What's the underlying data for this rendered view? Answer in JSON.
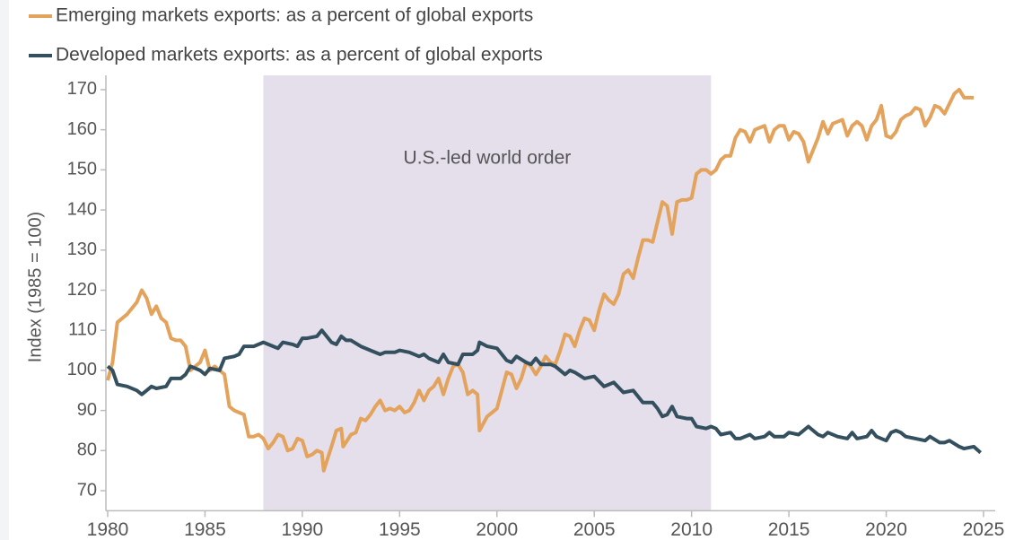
{
  "chart_data": {
    "type": "line",
    "ylabel": "Index (1985 = 100)",
    "xlim": [
      1980,
      2025.6
    ],
    "xticks": [
      1980,
      1985,
      1990,
      1995,
      2000,
      2005,
      2010,
      2015,
      2020,
      2025
    ],
    "ylim": [
      65,
      172
    ],
    "yticks": [
      70,
      80,
      90,
      100,
      110,
      120,
      130,
      140,
      150,
      160,
      170
    ],
    "grid": false,
    "legend": "top-left",
    "shaded_region": {
      "label": "U.S.-led world order",
      "x0": 1988,
      "x1": 2011,
      "color": "#e4dfea"
    },
    "series": [
      {
        "name": "Emerging markets exports: as a percent of global exports",
        "color": "#e3a35c",
        "x": [
          1980,
          1980.25,
          1980.5,
          1981,
          1981.5,
          1981.75,
          1982,
          1982.25,
          1982.5,
          1982.75,
          1983,
          1983.25,
          1983.5,
          1983.75,
          1984,
          1984.25,
          1984.5,
          1984.75,
          1985,
          1985.25,
          1985.5,
          1985.75,
          1986,
          1986.25,
          1986.5,
          1986.75,
          1987,
          1987.25,
          1987.5,
          1987.75,
          1988,
          1988.25,
          1988.5,
          1988.75,
          1989,
          1989.25,
          1989.5,
          1989.75,
          1990,
          1990.25,
          1990.5,
          1990.75,
          1991,
          1991.1,
          1991.5,
          1991.75,
          1992,
          1992.1,
          1992.5,
          1992.75,
          1993,
          1993.25,
          1993.5,
          1993.75,
          1994,
          1994.25,
          1994.5,
          1994.75,
          1995,
          1995.25,
          1995.5,
          1995.75,
          1996,
          1996.25,
          1996.5,
          1996.75,
          1997,
          1997.25,
          1997.5,
          1997.75,
          1998,
          1998.25,
          1998.5,
          1998.75,
          1999,
          1999.1,
          1999.5,
          1999.75,
          2000,
          2000.25,
          2000.5,
          2000.75,
          2001,
          2001.25,
          2001.5,
          2001.75,
          2002,
          2002.25,
          2002.5,
          2002.75,
          2003,
          2003.25,
          2003.5,
          2003.75,
          2004,
          2004.25,
          2004.5,
          2004.75,
          2005,
          2005.25,
          2005.5,
          2005.75,
          2006,
          2006.25,
          2006.5,
          2006.75,
          2007,
          2007.25,
          2007.5,
          2007.75,
          2008,
          2008.25,
          2008.5,
          2008.75,
          2009,
          2009.25,
          2009.5,
          2009.75,
          2010,
          2010.25,
          2010.5,
          2010.75,
          2011,
          2011.25,
          2011.5,
          2011.75,
          2012,
          2012.25,
          2012.5,
          2012.75,
          2013,
          2013.25,
          2013.5,
          2013.75,
          2014,
          2014.25,
          2014.5,
          2014.75,
          2015,
          2015.25,
          2015.5,
          2015.75,
          2016,
          2016.25,
          2016.5,
          2016.75,
          2017,
          2017.25,
          2017.5,
          2017.75,
          2018,
          2018.25,
          2018.5,
          2018.75,
          2019,
          2019.25,
          2019.5,
          2019.75,
          2020,
          2020.25,
          2020.5,
          2020.75,
          2021,
          2021.25,
          2021.5,
          2021.75,
          2022,
          2022.25,
          2022.5,
          2022.75,
          2023,
          2023.25,
          2023.5,
          2023.75,
          2024,
          2024.25,
          2024.5
        ],
        "values": [
          97.5,
          102,
          112,
          114,
          117,
          120,
          118,
          114,
          116,
          113,
          112,
          108,
          107.5,
          107.5,
          106,
          100,
          101,
          102,
          105,
          100,
          101,
          100,
          99,
          91,
          90,
          89.5,
          89,
          83.5,
          83.5,
          84,
          83,
          80.5,
          82,
          84,
          83.5,
          80,
          80.5,
          83,
          82.5,
          78.5,
          79,
          80,
          79.5,
          75,
          81,
          85,
          85.5,
          81,
          84,
          84.5,
          88,
          87.5,
          89,
          91,
          92.5,
          90,
          90.5,
          90,
          91,
          89.5,
          90,
          92,
          95,
          92.5,
          95,
          96,
          98,
          94,
          98,
          101,
          101.5,
          99.5,
          94,
          95,
          94,
          85,
          88.5,
          89.5,
          90.5,
          95,
          99.5,
          99,
          95.5,
          98,
          102,
          101,
          99,
          101,
          103.5,
          102,
          101.5,
          105,
          109,
          108.5,
          106,
          110,
          113,
          112.5,
          110,
          115,
          119,
          117.5,
          116.5,
          119,
          124,
          125,
          123,
          128,
          132.5,
          132.5,
          132,
          137,
          142,
          141,
          134,
          142,
          142.5,
          142.5,
          143,
          149,
          150,
          150,
          149,
          150,
          152.5,
          153.5,
          153.5,
          158,
          160,
          159.5,
          157,
          160,
          160.5,
          161,
          157,
          160,
          161,
          161,
          157.5,
          159.5,
          159,
          157,
          152,
          155,
          158,
          162,
          159,
          161.5,
          162,
          162.5,
          158.5,
          161,
          162,
          161,
          157.5,
          161,
          162.5,
          166,
          158.5,
          158,
          159.5,
          162.5,
          163.5,
          164,
          165.5,
          165,
          161,
          163,
          166,
          165.5,
          164,
          166.5,
          169,
          170,
          168,
          168,
          168
        ]
      },
      {
        "name": "Developed markets exports: as a percent of global exports",
        "color": "#34505f",
        "x": [
          1980,
          1980.25,
          1980.5,
          1981,
          1981.5,
          1981.75,
          1982,
          1982.25,
          1982.5,
          1983,
          1983.25,
          1983.75,
          1984,
          1984.25,
          1984.75,
          1985,
          1985.25,
          1985.75,
          1986,
          1986.5,
          1986.75,
          1987,
          1987.5,
          1987.75,
          1988,
          1988.5,
          1988.75,
          1989,
          1989.5,
          1989.75,
          1990,
          1990.25,
          1990.75,
          1991,
          1991.5,
          1991.75,
          1992,
          1992.25,
          1992.5,
          1993,
          1993.5,
          1994,
          1994.25,
          1994.75,
          1995,
          1995.5,
          1996,
          1996.25,
          1996.5,
          1997,
          1997.25,
          1997.5,
          1998,
          1998.25,
          1998.75,
          1999,
          1999.1,
          1999.5,
          2000,
          2000.25,
          2000.5,
          2000.75,
          2001,
          2001.5,
          2001.75,
          2002,
          2002.25,
          2002.75,
          2003,
          2003.5,
          2003.75,
          2004,
          2004.5,
          2005,
          2005.5,
          2005.75,
          2006,
          2006.5,
          2007,
          2007.5,
          2008,
          2008.25,
          2008.5,
          2008.75,
          2009,
          2009.25,
          2009.75,
          2010,
          2010.25,
          2010.75,
          2011,
          2011.25,
          2011.5,
          2012,
          2012.25,
          2012.5,
          2013,
          2013.25,
          2013.75,
          2014,
          2014.25,
          2014.75,
          2015,
          2015.5,
          2016,
          2016.5,
          2016.75,
          2017,
          2017.5,
          2018,
          2018.25,
          2018.5,
          2019,
          2019.25,
          2019.5,
          2020,
          2020.25,
          2020.5,
          2020.75,
          2021,
          2021.5,
          2022,
          2022.25,
          2022.75,
          2023,
          2023.25,
          2023.75,
          2024,
          2024.5,
          2024.85
        ],
        "values": [
          101,
          100,
          96.5,
          96,
          95,
          94,
          95,
          96,
          95.5,
          96,
          98,
          98,
          99,
          101,
          100,
          99,
          100.5,
          100,
          103,
          103.5,
          104,
          106,
          106,
          106.5,
          107,
          106,
          105.5,
          107,
          106.5,
          106,
          108,
          108,
          108.5,
          110,
          107,
          106.5,
          108.5,
          107.5,
          107.5,
          106,
          105,
          104,
          104.5,
          104.5,
          105,
          104.5,
          103.5,
          104,
          103,
          102,
          104,
          102,
          101.5,
          104,
          104,
          105,
          107,
          106,
          105.5,
          104,
          102.5,
          102,
          103.5,
          102,
          101.5,
          103,
          101.5,
          101.5,
          101,
          99,
          100,
          99.5,
          98,
          98.5,
          96,
          96.5,
          97,
          94.5,
          95,
          92,
          92,
          90.5,
          88.5,
          89,
          91,
          88.5,
          88,
          88,
          86,
          85.5,
          86,
          85.5,
          84,
          84.5,
          83,
          83,
          84,
          83,
          83.5,
          84.5,
          83.5,
          83.5,
          84.5,
          84,
          86,
          84,
          83.5,
          84.5,
          83.5,
          83,
          84.5,
          83,
          83.5,
          85,
          83.5,
          82.5,
          84.5,
          85,
          84.5,
          83.5,
          83,
          82.5,
          83.5,
          82,
          82,
          82.5,
          81,
          80.5,
          81,
          79.5
        ]
      }
    ]
  }
}
